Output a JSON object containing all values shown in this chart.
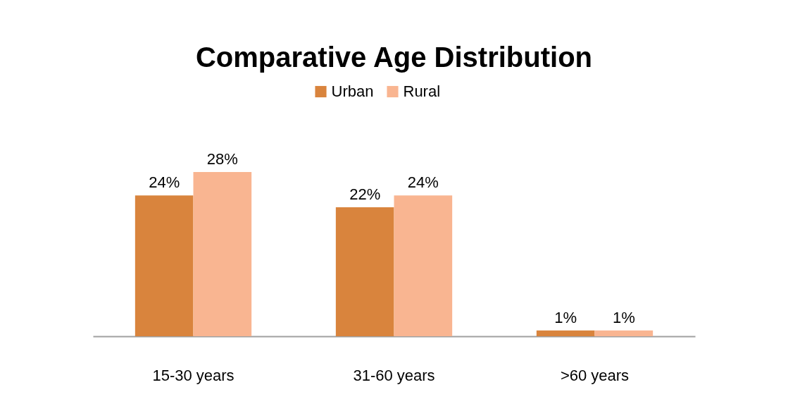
{
  "chart_data": {
    "type": "bar",
    "title": "Comparative Age Distribution",
    "categories": [
      "15-30 years",
      "31-60 years",
      ">60 years"
    ],
    "series": [
      {
        "name": "Urban",
        "color": "#d9843d",
        "values": [
          24,
          22,
          1
        ],
        "value_labels": [
          "24%",
          "22%",
          "1%"
        ]
      },
      {
        "name": "Rural",
        "color": "#f9b591",
        "values": [
          28,
          24,
          1
        ],
        "value_labels": [
          "28%",
          "24%",
          "1%"
        ]
      }
    ],
    "legend": "top",
    "grid": false,
    "tick_labels": "x"
  }
}
